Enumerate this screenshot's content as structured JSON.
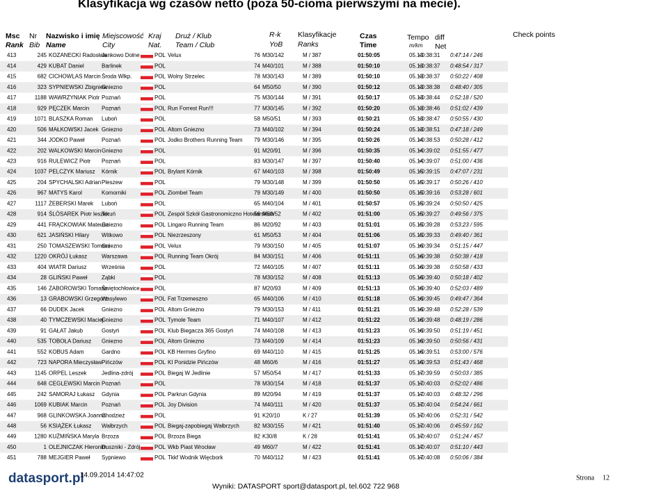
{
  "title": "Klasyfikacja wg czasów netto (poza 50-cioma pierwszymi na mecie).",
  "header": {
    "msc": "Msc",
    "rank": "Rank",
    "nr": "Nr",
    "bib": "Bib",
    "nazwisko": "Nazwisko i imię",
    "name": "Name",
    "miejscowosc": "Miejscowość",
    "city": "City",
    "kraj": "Kraj",
    "nat": "Nat.",
    "druz": "Druż / Klub",
    "team": "Team / Club",
    "rk": "R-k",
    "yob": "YoB",
    "klas": "Klasyfikacje",
    "ranks": "Ranks",
    "czas": "Czas",
    "time": "Time",
    "tempo": "Tempo",
    "mkm": "m/km",
    "diff": "diff",
    "net": "Net",
    "check": "Check points"
  },
  "rows": [
    [
      413,
      245,
      "KOZANECKI Radosław",
      "Jankowo Dolne",
      "POL",
      "Velux",
      76,
      "M30/142",
      "M / 387",
      "01:50:05",
      "05.13",
      "+0:38:31",
      "0:47:14 / 246"
    ],
    [
      414,
      429,
      "KUBAT Daniel",
      "Barlinek",
      "POL",
      null,
      74,
      "M40/101",
      "M / 388",
      "01:50:10",
      "05.13",
      "+0:38:37",
      "0:48:54 / 317"
    ],
    [
      415,
      682,
      "CICHOWLAS Marcin",
      "Środa Wlkp.",
      "POL",
      "Wolny Strzelec",
      78,
      "M30/143",
      "M / 389",
      "01:50:10",
      "05.13",
      "+0:38:37",
      "0:50:22 / 408"
    ],
    [
      416,
      323,
      "SYPNIEWSKI Zbigniew",
      "Gniezno",
      "POL",
      null,
      64,
      "M50/50",
      "M / 390",
      "01:50:12",
      "05.13",
      "+0:38:38",
      "0:48:40 / 305"
    ],
    [
      417,
      1188,
      "WAWRZYNIAK Piotr",
      "Poznań",
      "POL",
      null,
      75,
      "M30/144",
      "M / 391",
      "01:50:17",
      "05.13",
      "+0:38:44",
      "0:52:18 / 520"
    ],
    [
      418,
      929,
      "PĘCZEK Marcin",
      "Poznań",
      "POL",
      "Run Forrest Run!!!",
      77,
      "M30/145",
      "M / 392",
      "01:50:20",
      "05.13",
      "+0:38:46",
      "0:51:02 / 439"
    ],
    [
      419,
      1071,
      "BLASZKA Roman",
      "Luboń",
      "POL",
      null,
      58,
      "M50/51",
      "M / 393",
      "01:50:21",
      "05.13",
      "+0:38:47",
      "0:50:55 / 430"
    ],
    [
      420,
      506,
      "MAŁKOWSKI Jacek",
      "Gniezno",
      "POL",
      "Altom Gniezno",
      73,
      "M40/102",
      "M / 394",
      "01:50:24",
      "05.13",
      "+0:38:51",
      "0:47:18 / 249"
    ],
    [
      421,
      344,
      "JODKO Paweł",
      "Poznań",
      "POL",
      "Jodko Brothers Running Team",
      79,
      "M30/146",
      "M / 395",
      "01:50:26",
      "05.14",
      "+0:38:53",
      "0:50:28 / 412"
    ],
    [
      422,
      202,
      "WALKOWSKI Marcin",
      "Gniezno",
      "POL",
      null,
      91,
      "M20/91",
      "M / 396",
      "01:50:35",
      "05.14",
      "+0:39:02",
      "0:51:55 / 477"
    ],
    [
      423,
      916,
      "RULEWICZ Piotr",
      "Poznań",
      "POL",
      null,
      83,
      "M30/147",
      "M / 397",
      "01:50:40",
      "05.14",
      "+0:39:07",
      "0:51:00 / 436"
    ],
    [
      424,
      1037,
      "PELCZYK Mariusz",
      "Kórnik",
      "POL",
      "Brylant Kórnik",
      67,
      "M40/103",
      "M / 398",
      "01:50:49",
      "05.15",
      "+0:39:15",
      "0:47:07 / 231"
    ],
    [
      425,
      204,
      "SPYCHALSKI Adrian",
      "Pleszew",
      "POL",
      null,
      79,
      "M30/148",
      "M / 399",
      "01:50:50",
      "05.15",
      "+0:39:17",
      "0:50:26 / 410"
    ],
    [
      426,
      967,
      "MATYS Karol",
      "Komorniki",
      "POL",
      "Ziombel Team",
      79,
      "M30/149",
      "M / 400",
      "01:50:50",
      "05.15",
      "+0:39:16",
      "0:53:28 / 601"
    ],
    [
      427,
      1117,
      "ŻEBERSKI Marek",
      "Luboń",
      "POL",
      null,
      65,
      "M40/104",
      "M / 401",
      "01:50:57",
      "05.15",
      "+0:39:24",
      "0:50:50 / 425"
    ],
    [
      428,
      914,
      "ŚLÓSAREK Piotr leszek",
      "Toruń",
      "POL",
      "Zespół Szkół Gastronomiczno Hotelarskich",
      56,
      "M50/52",
      "M / 402",
      "01:51:00",
      "05.15",
      "+0:39:27",
      "0:49:56 / 375"
    ],
    [
      429,
      441,
      "FRĄCKOWIAK Mateusz",
      "Gniezno",
      "POL",
      "Lingaro Running Team",
      86,
      "M20/92",
      "M / 403",
      "01:51:01",
      "05.15",
      "+0:39:28",
      "0:53:23 / 595"
    ],
    [
      430,
      621,
      "JASIŃSKI Hilary",
      "Witkowo",
      "POL",
      "Niezrzeszony",
      61,
      "M50/53",
      "M / 404",
      "01:51:06",
      "05.15",
      "+0:39:33",
      "0:49:40 / 361"
    ],
    [
      431,
      250,
      "TOMASZEWSKI Tomasz",
      "Gniezno",
      "POL",
      "Velux",
      79,
      "M30/150",
      "M / 405",
      "01:51:07",
      "05.16",
      "+0:39:34",
      "0:51:15 / 447"
    ],
    [
      432,
      1220,
      "OKRÓJ Łukasz",
      "Warszawa",
      "POL",
      "Running Team Okrój",
      84,
      "M30/151",
      "M / 406",
      "01:51:11",
      "05.16",
      "+0:39:38",
      "0:50:38 / 418"
    ],
    [
      433,
      404,
      "WIATR Dariusz",
      "Września",
      "POL",
      null,
      72,
      "M40/105",
      "M / 407",
      "01:51:11",
      "05.16",
      "+0:39:38",
      "0:50:58 / 433"
    ],
    [
      434,
      28,
      "GLIŃSKI Paweł",
      "Ząbki",
      "POL",
      null,
      78,
      "M30/152",
      "M / 408",
      "01:51:13",
      "05.16",
      "+0:39:40",
      "0:50:18 / 402"
    ],
    [
      435,
      146,
      "ZABOROWSKI Tomasz",
      "Świętochłowice",
      "POL",
      null,
      87,
      "M20/93",
      "M / 409",
      "01:51:13",
      "05.16",
      "+0:39:40",
      "0:52:03 / 489"
    ],
    [
      436,
      13,
      "GRABOWSKI Grzegorz",
      "Wasylewo",
      "POL",
      "Fat Trzemeszno",
      65,
      "M40/106",
      "M / 410",
      "01:51:18",
      "05.16",
      "+0:39:45",
      "0:49:47 / 364"
    ],
    [
      437,
      66,
      "DUDEK Jacek",
      "Gniezno",
      "POL",
      "Altom Gniezno",
      79,
      "M30/153",
      "M / 411",
      "01:51:21",
      "05.16",
      "+0:39:48",
      "0:52:28 / 539"
    ],
    [
      438,
      40,
      "TYMCZEWSKI Maciej",
      "Gniezno",
      "POL",
      "Tymole Team",
      71,
      "M40/107",
      "M / 412",
      "01:51:22",
      "05.16",
      "+0:39:48",
      "0:48:19 / 286"
    ],
    [
      439,
      91,
      "GAŁAT Jakub",
      "Gostyń",
      "POL",
      "Klub Biegacza 365 Gostyń",
      74,
      "M40/108",
      "M / 413",
      "01:51:23",
      "05.16",
      "+0:39:50",
      "0:51:19 / 451"
    ],
    [
      440,
      535,
      "TOBOŁA Dariusz",
      "Gniezno",
      "POL",
      "Altom Gniezno",
      73,
      "M40/109",
      "M / 414",
      "01:51:23",
      "05.16",
      "+0:39:50",
      "0:50:56 / 431"
    ],
    [
      441,
      552,
      "KOBUS Adam",
      "Gardno",
      "POL",
      "KB Hermes Gryfino",
      69,
      "M40/110",
      "M / 415",
      "01:51:25",
      "05.16",
      "+0:39:51",
      "0:53:00 / 576"
    ],
    [
      442,
      723,
      "NAPORA Mieczysław",
      "Pińczów",
      "POL",
      "KI Ponidzie Pińczów",
      48,
      "M60/6",
      "M / 416",
      "01:51:27",
      "05.16",
      "+0:39:53",
      "0:51:43 / 468"
    ],
    [
      443,
      1145,
      "ORPEL Leszek",
      "Jedlina-zdrój",
      "POL",
      "Biegaj W Jedlinie",
      57,
      "M50/54",
      "M / 417",
      "01:51:33",
      "05.17",
      "+0:39:59",
      "0:50:03 / 385"
    ],
    [
      444,
      648,
      "CEGLEWSKI Marcin",
      "Poznań",
      "POL",
      null,
      78,
      "M30/154",
      "M / 418",
      "01:51:37",
      "05.17",
      "+0:40:03",
      "0:52:02 / 486"
    ],
    [
      445,
      242,
      "SAMORAJ Łukasz",
      "Gdynia",
      "POL",
      "Parkrun Gdynia",
      89,
      "M20/94",
      "M / 419",
      "01:51:37",
      "05.17",
      "+0:40:03",
      "0:48:32 / 296"
    ],
    [
      446,
      1069,
      "KUBIAK Marcin",
      "Poznań",
      "POL",
      "Joy Division",
      74,
      "M40/111",
      "M / 420",
      "01:51:37",
      "05.17",
      "+0:40:04",
      "0:54:24 / 661"
    ],
    [
      447,
      968,
      "GLINKOWSKA Joanna",
      "Chodzież",
      "POL",
      null,
      91,
      "K20/10",
      "K / 27",
      "01:51:39",
      "05.17",
      "+0:40:06",
      "0:52:31 / 542"
    ],
    [
      448,
      56,
      "KSIĄŻEK Łukasz",
      "Wałbrzych",
      "POL",
      "Biegaj-zapobiegaj Wałbrzych",
      82,
      "M30/155",
      "M / 421",
      "01:51:40",
      "05.17",
      "+0:40:06",
      "0:45:59 / 162"
    ],
    [
      449,
      1280,
      "KUŹMIŃSKA Maryla",
      "Brzoza",
      "POL",
      "Brzoza Biega",
      82,
      "K30/8",
      "K / 28",
      "01:51:41",
      "05.17",
      "+0:40:07",
      "0:51:24 / 457"
    ],
    [
      450,
      1,
      "OLEJNICZAK Hieronim",
      "Duszniki - Zdrój",
      "POL",
      "Wkb Piast Wrocław",
      49,
      "M60/7",
      "M / 422",
      "01:51:41",
      "05.17",
      "+0:40:07",
      "0:51:10 / 443"
    ],
    [
      451,
      788,
      "MEJGIER Paweł",
      "Sypniewo",
      "POL",
      "Tkkf Wodnik Więcbork",
      70,
      "M40/112",
      "M / 423",
      "01:51:41",
      "05.17",
      "+0:40:08",
      "0:50:06 / 384"
    ]
  ],
  "footer": {
    "logo": "datasport.pl",
    "date": "14.09.2014 14:47:02",
    "info": "Wyniki: DATASPORT sport@datasport.pl, tel.602 722 968",
    "page_label": "Strona",
    "page": 12
  }
}
